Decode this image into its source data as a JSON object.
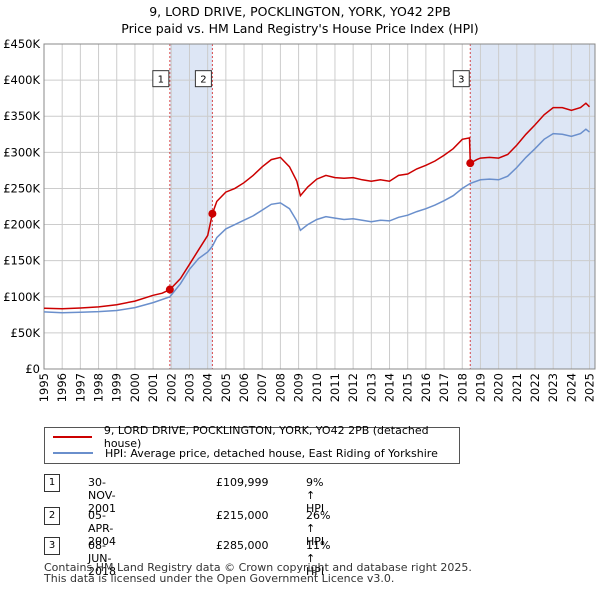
{
  "title_line1": "9, LORD DRIVE, POCKLINGTON, YORK, YO42 2PB",
  "title_line2": "Price paid vs. HM Land Registry's House Price Index (HPI)",
  "colors": {
    "property": "#cc0000",
    "hpi": "#6a8fcc",
    "shade": "#dde6f5",
    "grid": "#cccccc"
  },
  "chart_data": {
    "type": "line",
    "title": "9, LORD DRIVE, POCKLINGTON, YORK, YO42 2PB",
    "subtitle": "Price paid vs. HM Land Registry's House Price Index (HPI)",
    "xlabel": "",
    "ylabel": "",
    "xlim": [
      1995,
      2025.3
    ],
    "ylim": [
      0,
      450000
    ],
    "grid": true,
    "y_ticks": [
      {
        "value": 0,
        "label": "£0"
      },
      {
        "value": 50000,
        "label": "£50K"
      },
      {
        "value": 100000,
        "label": "£100K"
      },
      {
        "value": 150000,
        "label": "£150K"
      },
      {
        "value": 200000,
        "label": "£200K"
      },
      {
        "value": 250000,
        "label": "£250K"
      },
      {
        "value": 300000,
        "label": "£300K"
      },
      {
        "value": 350000,
        "label": "£350K"
      },
      {
        "value": 400000,
        "label": "£400K"
      },
      {
        "value": 450000,
        "label": "£450K"
      }
    ],
    "x_ticks": [
      "1995",
      "1996",
      "1997",
      "1998",
      "1999",
      "2000",
      "2001",
      "2002",
      "2003",
      "2004",
      "2005",
      "2006",
      "2007",
      "2008",
      "2009",
      "2010",
      "2011",
      "2012",
      "2013",
      "2014",
      "2015",
      "2016",
      "2017",
      "2018",
      "2019",
      "2020",
      "2021",
      "2022",
      "2023",
      "2024",
      "2025"
    ],
    "shaded_periods": [
      [
        2001.92,
        2004.26
      ],
      [
        2018.44,
        2025.3
      ]
    ],
    "series": [
      {
        "name": "9, LORD DRIVE, POCKLINGTON, YORK, YO42 2PB (detached house)",
        "color": "#cc0000",
        "points": [
          [
            1995.0,
            84000
          ],
          [
            1996.0,
            83500
          ],
          [
            1997.0,
            84500
          ],
          [
            1998.0,
            86000
          ],
          [
            1999.0,
            89000
          ],
          [
            2000.0,
            94000
          ],
          [
            2001.0,
            102000
          ],
          [
            2001.5,
            105000
          ],
          [
            2001.92,
            109999
          ],
          [
            2002.5,
            125000
          ],
          [
            2003.0,
            145000
          ],
          [
            2003.5,
            165000
          ],
          [
            2004.0,
            185000
          ],
          [
            2004.26,
            215000
          ],
          [
            2004.5,
            232000
          ],
          [
            2005.0,
            245000
          ],
          [
            2005.5,
            250000
          ],
          [
            2006.0,
            258000
          ],
          [
            2006.5,
            268000
          ],
          [
            2007.0,
            280000
          ],
          [
            2007.5,
            290000
          ],
          [
            2008.0,
            293000
          ],
          [
            2008.5,
            280000
          ],
          [
            2008.9,
            260000
          ],
          [
            2009.1,
            240000
          ],
          [
            2009.5,
            252000
          ],
          [
            2010.0,
            263000
          ],
          [
            2010.5,
            268000
          ],
          [
            2011.0,
            265000
          ],
          [
            2011.5,
            264000
          ],
          [
            2012.0,
            265000
          ],
          [
            2012.5,
            262000
          ],
          [
            2013.0,
            260000
          ],
          [
            2013.5,
            262000
          ],
          [
            2014.0,
            260000
          ],
          [
            2014.5,
            268000
          ],
          [
            2015.0,
            270000
          ],
          [
            2015.5,
            277000
          ],
          [
            2016.0,
            282000
          ],
          [
            2016.5,
            288000
          ],
          [
            2017.0,
            296000
          ],
          [
            2017.5,
            305000
          ],
          [
            2018.0,
            318000
          ],
          [
            2018.4,
            320000
          ],
          [
            2018.44,
            285000
          ],
          [
            2018.8,
            290000
          ],
          [
            2019.0,
            292000
          ],
          [
            2019.5,
            293000
          ],
          [
            2020.0,
            292000
          ],
          [
            2020.5,
            297000
          ],
          [
            2021.0,
            310000
          ],
          [
            2021.5,
            325000
          ],
          [
            2022.0,
            338000
          ],
          [
            2022.5,
            352000
          ],
          [
            2023.0,
            362000
          ],
          [
            2023.5,
            362000
          ],
          [
            2024.0,
            358000
          ],
          [
            2024.5,
            362000
          ],
          [
            2024.8,
            368000
          ],
          [
            2025.0,
            363000
          ]
        ]
      },
      {
        "name": "HPI: Average price, detached house, East Riding of Yorkshire",
        "color": "#6a8fcc",
        "points": [
          [
            1995.0,
            79000
          ],
          [
            1996.0,
            78000
          ],
          [
            1997.0,
            78500
          ],
          [
            1998.0,
            79500
          ],
          [
            1999.0,
            81000
          ],
          [
            2000.0,
            85000
          ],
          [
            2001.0,
            92000
          ],
          [
            2001.92,
            100000
          ],
          [
            2002.5,
            118000
          ],
          [
            2003.0,
            138000
          ],
          [
            2003.5,
            153000
          ],
          [
            2004.0,
            162000
          ],
          [
            2004.26,
            170000
          ],
          [
            2004.5,
            182000
          ],
          [
            2005.0,
            194000
          ],
          [
            2005.5,
            200000
          ],
          [
            2006.0,
            206000
          ],
          [
            2006.5,
            212000
          ],
          [
            2007.0,
            220000
          ],
          [
            2007.5,
            228000
          ],
          [
            2008.0,
            230000
          ],
          [
            2008.5,
            222000
          ],
          [
            2008.9,
            205000
          ],
          [
            2009.1,
            192000
          ],
          [
            2009.5,
            200000
          ],
          [
            2010.0,
            207000
          ],
          [
            2010.5,
            211000
          ],
          [
            2011.0,
            209000
          ],
          [
            2011.5,
            207000
          ],
          [
            2012.0,
            208000
          ],
          [
            2012.5,
            206000
          ],
          [
            2013.0,
            204000
          ],
          [
            2013.5,
            206000
          ],
          [
            2014.0,
            205000
          ],
          [
            2014.5,
            210000
          ],
          [
            2015.0,
            213000
          ],
          [
            2015.5,
            218000
          ],
          [
            2016.0,
            222000
          ],
          [
            2016.5,
            227000
          ],
          [
            2017.0,
            233000
          ],
          [
            2017.5,
            240000
          ],
          [
            2018.0,
            250000
          ],
          [
            2018.44,
            257000
          ],
          [
            2019.0,
            262000
          ],
          [
            2019.5,
            263000
          ],
          [
            2020.0,
            262000
          ],
          [
            2020.5,
            267000
          ],
          [
            2021.0,
            279000
          ],
          [
            2021.5,
            293000
          ],
          [
            2022.0,
            305000
          ],
          [
            2022.5,
            318000
          ],
          [
            2023.0,
            326000
          ],
          [
            2023.5,
            325000
          ],
          [
            2024.0,
            322000
          ],
          [
            2024.5,
            326000
          ],
          [
            2024.8,
            332000
          ],
          [
            2025.0,
            328000
          ]
        ]
      }
    ],
    "sales": [
      {
        "n": "1",
        "x": 2001.92,
        "y": 109999
      },
      {
        "n": "2",
        "x": 2004.26,
        "y": 215000
      },
      {
        "n": "3",
        "x": 2018.44,
        "y": 285000
      }
    ]
  },
  "legend": {
    "property_label": "9, LORD DRIVE, POCKLINGTON, YORK, YO42 2PB (detached house)",
    "hpi_label": "HPI: Average price, detached house, East Riding of Yorkshire"
  },
  "sales_table": [
    {
      "num": "1",
      "date": "30-NOV-2001",
      "price": "£109,999",
      "hpi": "9% ↑ HPI"
    },
    {
      "num": "2",
      "date": "05-APR-2004",
      "price": "£215,000",
      "hpi": "26% ↑ HPI"
    },
    {
      "num": "3",
      "date": "08-JUN-2018",
      "price": "£285,000",
      "hpi": "11% ↑ HPI"
    }
  ],
  "footer": {
    "line1": "Contains HM Land Registry data © Crown copyright and database right 2025.",
    "line2": "This data is licensed under the Open Government Licence v3.0."
  }
}
